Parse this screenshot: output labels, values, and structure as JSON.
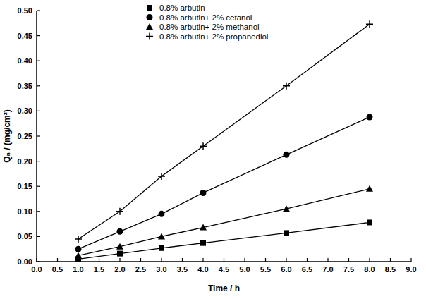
{
  "chart_data": {
    "type": "line",
    "x_label": "Time / h",
    "y_label": "Qₙ / (mg/cm²)",
    "x": [
      1,
      2,
      3,
      4,
      6,
      8
    ],
    "series": [
      {
        "name": "0.8% arbutin",
        "color": "#000000",
        "marker": "square",
        "values": [
          0.005,
          0.016,
          0.027,
          0.037,
          0.057,
          0.078
        ]
      },
      {
        "name": "0.8% arbutin+ 2% cetanol",
        "color": "#000000",
        "marker": "circle",
        "values": [
          0.025,
          0.06,
          0.095,
          0.137,
          0.213,
          0.288
        ]
      },
      {
        "name": "0.8% arbutin+ 2% methanol",
        "color": "#000000",
        "marker": "triangle",
        "values": [
          0.012,
          0.03,
          0.05,
          0.068,
          0.105,
          0.145
        ]
      },
      {
        "name": "0.8% arbutin+ 2% propanediol",
        "color": "#000000",
        "marker": "plus",
        "values": [
          0.045,
          0.1,
          0.17,
          0.23,
          0.35,
          0.473
        ]
      }
    ],
    "xlim": [
      0,
      9
    ],
    "xticks": [
      {
        "value": 0,
        "label": "0.0"
      },
      {
        "value": 0.5,
        "label": "0.5"
      },
      {
        "value": 1,
        "label": "1.0"
      },
      {
        "value": 1.5,
        "label": "1.5"
      },
      {
        "value": 2,
        "label": "2.0"
      },
      {
        "value": 2.5,
        "label": "2.5"
      },
      {
        "value": 3,
        "label": "3.0"
      },
      {
        "value": 3.5,
        "label": "3.5"
      },
      {
        "value": 4,
        "label": "4.0"
      },
      {
        "value": 4.5,
        "label": "4.5"
      },
      {
        "value": 5,
        "label": "5.0"
      },
      {
        "value": 5.5,
        "label": "5.5"
      },
      {
        "value": 6,
        "label": "6.0"
      },
      {
        "value": 6.5,
        "label": "6.5"
      },
      {
        "value": 7,
        "label": "7.0"
      },
      {
        "value": 7.5,
        "label": "7.5"
      },
      {
        "value": 8,
        "label": "8.0"
      },
      {
        "value": 8.5,
        "label": "8.5"
      },
      {
        "value": 9,
        "label": "9.0"
      }
    ],
    "ylim": [
      0,
      0.5
    ],
    "yticks": [
      {
        "value": 0,
        "label": "0.00"
      },
      0.05,
      {
        "value": 0.1,
        "label": "0.10"
      },
      0.15,
      {
        "value": 0.2,
        "label": "0.20"
      },
      0.25,
      {
        "value": 0.3,
        "label": "0.30"
      },
      0.35,
      {
        "value": 0.4,
        "label": "0.40"
      },
      0.45,
      {
        "value": 0.5,
        "label": "0.50"
      }
    ],
    "grid": false,
    "legend": "top"
  }
}
